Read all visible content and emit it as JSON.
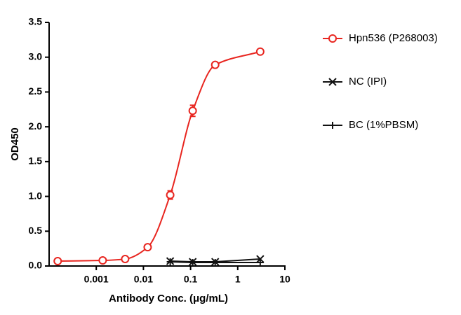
{
  "chart_data": {
    "type": "scatter",
    "xlabel": "Antibody Conc. (μg/mL)",
    "ylabel": "OD450",
    "xscale": "log",
    "xlim": [
      0.0001,
      10
    ],
    "xticks": [
      0.001,
      0.01,
      0.1,
      1,
      10
    ],
    "ylim": [
      0,
      3.5
    ],
    "yticks": [
      {
        "value": 0,
        "label": "0.0"
      },
      {
        "value": 0.5,
        "label": "0.5"
      },
      {
        "value": 1,
        "label": "1.0"
      },
      {
        "value": 1.5,
        "label": "1.5"
      },
      {
        "value": 2,
        "label": "2.0"
      },
      {
        "value": 2.5,
        "label": "2.5"
      },
      {
        "value": 3,
        "label": "3.0"
      },
      {
        "value": 3.5,
        "label": "3.5"
      }
    ],
    "legend": "right",
    "series": [
      {
        "name": "Hpn536 (P268003)",
        "color": "#e8251f",
        "marker": "circle",
        "curve": "smooth",
        "x": [
          0.000152,
          0.00137,
          0.0041,
          0.0123,
          0.037,
          0.111,
          0.333,
          3
        ],
        "values": [
          0.07,
          0.08,
          0.1,
          0.27,
          1.02,
          2.23,
          2.89,
          3.08
        ],
        "error": [
          0.01,
          0.01,
          0.01,
          0.02,
          0.06,
          0.08,
          0.02,
          0.02
        ]
      },
      {
        "name": "NC (IPI)",
        "color": "#111111",
        "marker": "x",
        "curve": "straight",
        "x": [
          0.037,
          0.111,
          0.333,
          3
        ],
        "values": [
          0.07,
          0.06,
          0.06,
          0.1
        ]
      },
      {
        "name": "BC (1%PBSM)",
        "color": "#111111",
        "marker": "plus",
        "curve": "straight",
        "x": [
          0.037,
          0.111,
          0.333,
          3
        ],
        "values": [
          0.06,
          0.05,
          0.05,
          0.05
        ]
      }
    ]
  }
}
